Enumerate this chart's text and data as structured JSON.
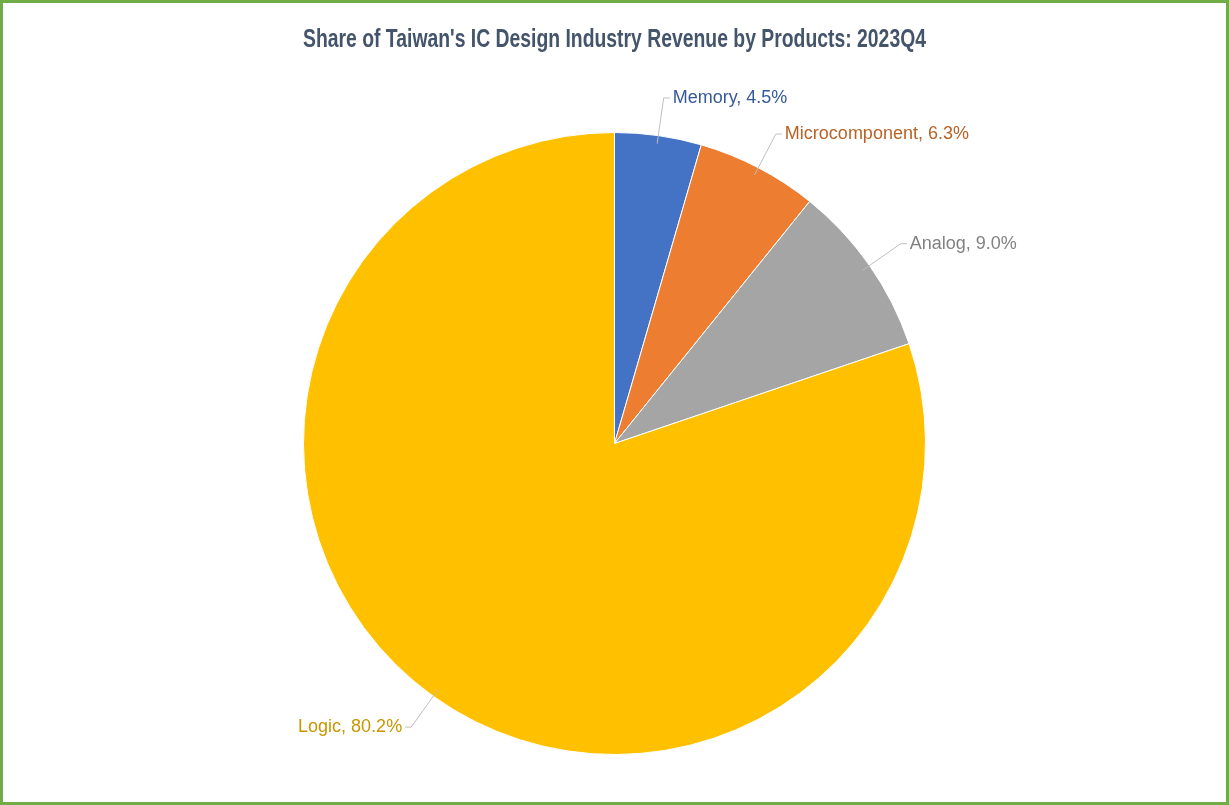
{
  "chart_data": {
    "type": "pie",
    "title": "Share of Taiwan's IC Design Industry Revenue by Products: 2023Q4",
    "categories": [
      "Memory",
      "Microcomponent",
      "Analog",
      "Logic"
    ],
    "values": [
      4.5,
      6.3,
      9.0,
      80.2
    ],
    "value_labels": [
      "4.5%",
      "6.3%",
      "9.0%",
      "80.2%"
    ],
    "colors": [
      "#4472c4",
      "#ed7d31",
      "#a5a5a5",
      "#ffc000"
    ],
    "legend": false
  }
}
